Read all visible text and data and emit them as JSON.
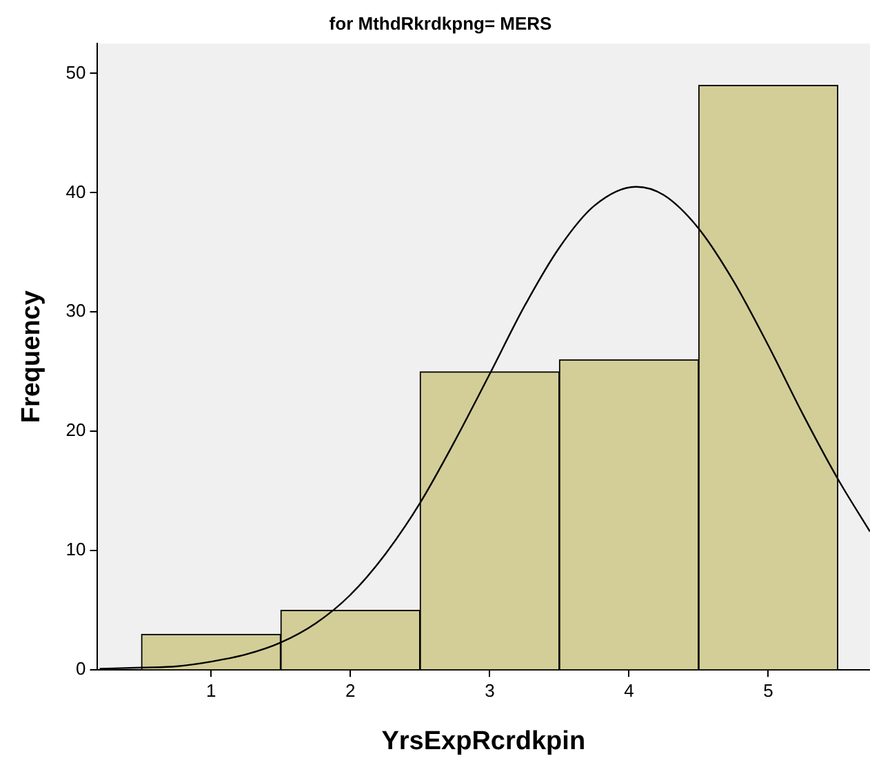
{
  "chart_data": {
    "type": "histogram",
    "title": "for MthdRkrdkpng= MERS",
    "xlabel": "YrsExpRcrdkpin",
    "ylabel": "Frequency",
    "bins": [
      0.5,
      1.5,
      2.5,
      3.5,
      4.5,
      5.5
    ],
    "series": [
      {
        "color": "#d3ce97",
        "values": [
          3,
          5,
          25,
          26,
          49
        ]
      },
      {
        "type": "line",
        "color": "#000000",
        "x": [
          0.2,
          0.5,
          0.75,
          1.0,
          1.25,
          1.5,
          1.75,
          2.0,
          2.25,
          2.5,
          2.75,
          3.0,
          3.25,
          3.5,
          3.75,
          4.05,
          4.25,
          4.5,
          4.75,
          5.0,
          5.25,
          5.5,
          5.73
        ],
        "values": [
          0.1,
          0.2,
          0.3,
          0.7,
          1.3,
          2.3,
          3.9,
          6.3,
          9.7,
          14,
          19.2,
          24.8,
          30.5,
          35.4,
          38.9,
          40.5,
          39.8,
          37,
          32.6,
          27.2,
          21.4,
          16,
          11.6
        ]
      }
    ],
    "xlim": [
      0.18,
      5.73
    ],
    "xticks": [
      1,
      2,
      3,
      4,
      5
    ],
    "ylim": [
      0,
      52.5
    ],
    "yticks": [
      0,
      10,
      20,
      30,
      40,
      50
    ],
    "grid": false,
    "legend": false,
    "marker": "none",
    "line_style": "solid"
  }
}
